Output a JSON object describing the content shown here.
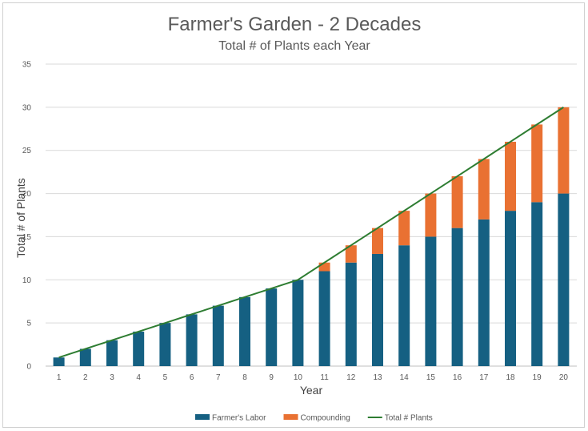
{
  "chart_data": {
    "type": "bar",
    "stacked": true,
    "title": "Farmer's Garden - 2 Decades",
    "subtitle": "Total # of Plants each Year",
    "xlabel": "Year",
    "ylabel": "Total # of Plants",
    "ylim": [
      0,
      35
    ],
    "yticks": [
      0,
      5,
      10,
      15,
      20,
      25,
      30,
      35
    ],
    "grid": true,
    "legend_position": "bottom",
    "categories": [
      "1",
      "2",
      "3",
      "4",
      "5",
      "6",
      "7",
      "8",
      "9",
      "10",
      "11",
      "12",
      "13",
      "14",
      "15",
      "16",
      "17",
      "18",
      "19",
      "20"
    ],
    "series": [
      {
        "name": "Farmer's Labor",
        "kind": "bar",
        "color": "#156082",
        "values": [
          1,
          2,
          3,
          4,
          5,
          6,
          7,
          8,
          9,
          10,
          11,
          12,
          13,
          14,
          15,
          16,
          17,
          18,
          19,
          20
        ]
      },
      {
        "name": "Compounding",
        "kind": "bar",
        "color": "#E97132",
        "values": [
          0,
          0,
          0,
          0,
          0,
          0,
          0,
          0,
          0,
          0,
          1,
          2,
          3,
          4,
          5,
          6,
          7,
          8,
          9,
          10
        ]
      },
      {
        "name": "Total # Plants",
        "kind": "line",
        "color": "#2E7D32",
        "values": [
          1,
          2,
          3,
          4,
          5,
          6,
          7,
          8,
          9,
          10,
          12,
          14,
          16,
          18,
          20,
          22,
          24,
          26,
          28,
          30
        ]
      }
    ]
  }
}
